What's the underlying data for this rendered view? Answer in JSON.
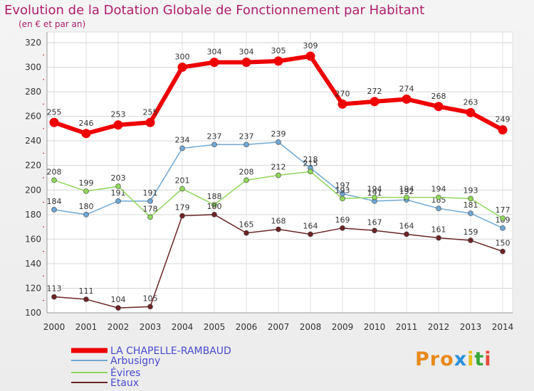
{
  "header": {
    "title": "Evolution de la Dotation Globale de Fonctionnement par Habitant",
    "subtitle": "(en € et par an)"
  },
  "brand": {
    "text": "Proxiti",
    "letters": [
      "P",
      "r",
      "o",
      "x",
      "i",
      "t",
      "i"
    ],
    "colors": [
      "#e88a1a",
      "#e88a1a",
      "#e88a1a",
      "#2a8fd8",
      "#e8c21a",
      "#3aa83a",
      "#e84a3a"
    ]
  },
  "chart_data": {
    "type": "line",
    "title": "Evolution de la Dotation Globale de Fonctionnement par Habitant",
    "subtitle": "(en € et par an)",
    "xlabel": "",
    "ylabel": "",
    "x": [
      "2000",
      "2001",
      "2002",
      "2003",
      "2004",
      "2005",
      "2006",
      "2007",
      "2008",
      "2009",
      "2010",
      "2011",
      "2012",
      "2013",
      "2014"
    ],
    "yticks": [
      100,
      120,
      140,
      160,
      180,
      200,
      220,
      240,
      260,
      280,
      300,
      320
    ],
    "ylim": [
      100,
      320
    ],
    "grid": true,
    "legend_position": "bottom-left",
    "series": [
      {
        "name": "LA CHAPELLE-RAMBAUD",
        "color": "#ee0000",
        "highlight": true,
        "values": [
          255,
          246,
          253,
          255,
          300,
          304,
          304,
          305,
          309,
          270,
          272,
          274,
          268,
          263,
          249
        ]
      },
      {
        "name": "Arbusigny",
        "color": "#6ea7d4",
        "highlight": false,
        "values": [
          184,
          180,
          191,
          191,
          234,
          237,
          237,
          239,
          218,
          197,
          191,
          192,
          185,
          181,
          169
        ]
      },
      {
        "name": "Évires",
        "color": "#8fd65a",
        "highlight": false,
        "values": [
          208,
          199,
          203,
          178,
          201,
          188,
          208,
          212,
          215,
          193,
          194,
          194,
          194,
          193,
          177
        ]
      },
      {
        "name": "Etaux",
        "color": "#6b2424",
        "highlight": false,
        "values": [
          113,
          111,
          104,
          105,
          179,
          180,
          165,
          168,
          164,
          169,
          167,
          164,
          161,
          159,
          150
        ]
      }
    ]
  }
}
